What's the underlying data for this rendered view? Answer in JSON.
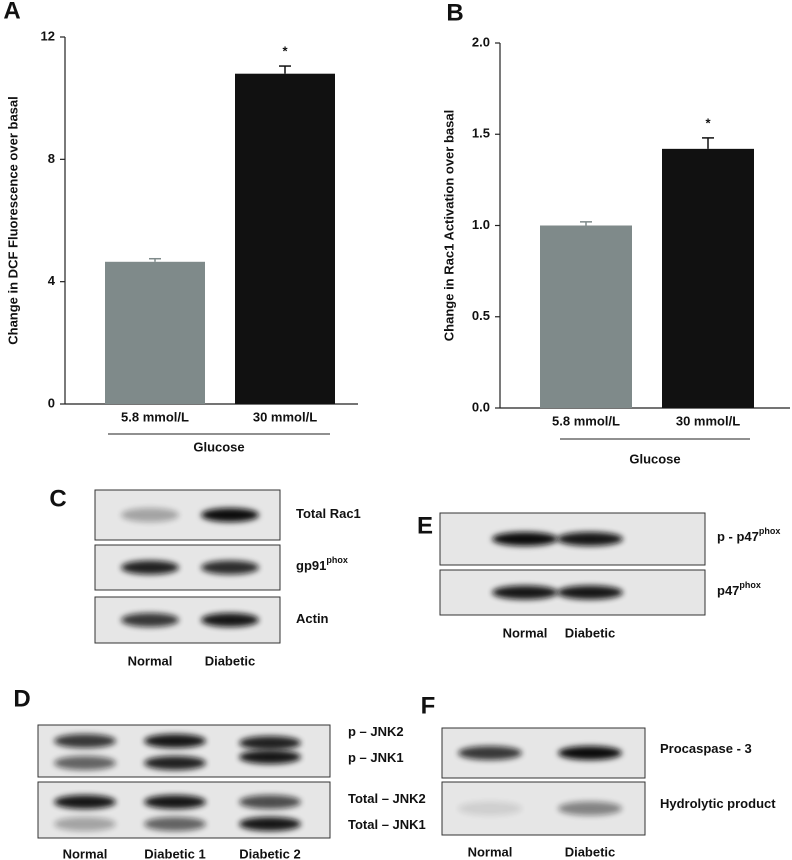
{
  "chart_data": [
    {
      "type": "bar",
      "panel": "A",
      "ylabel": "Change in DCF Fluorescence over basal",
      "xlabel": "Glucose",
      "categories": [
        "5.8 mmol/L",
        "30 mmol/L"
      ],
      "values": [
        4.65,
        10.8
      ],
      "errors": [
        0.1,
        0.25
      ],
      "colors": [
        "#7f8a8a",
        "#111111"
      ],
      "annotation": "*",
      "ylim": [
        0,
        12
      ],
      "yticks": [
        0,
        4,
        8,
        12
      ]
    },
    {
      "type": "bar",
      "panel": "B",
      "ylabel": "Change in Rac1 Activation over basal",
      "xlabel": "Glucose",
      "categories": [
        "5.8 mmol/L",
        "30 mmol/L"
      ],
      "values": [
        1.0,
        1.42
      ],
      "errors": [
        0.02,
        0.06
      ],
      "colors": [
        "#7f8a8a",
        "#111111"
      ],
      "annotation": "*",
      "ylim": [
        0,
        2
      ],
      "yticks": [
        {
          "value": 0,
          "label": "0.0"
        },
        0.5,
        {
          "value": 1,
          "label": "1.0"
        },
        1.5,
        {
          "value": 2,
          "label": "2.0"
        }
      ]
    }
  ],
  "blots": [
    {
      "panel": "C",
      "lanes": [
        "Normal",
        "Diabetic"
      ],
      "rows": [
        [
          {
            "label": "Total Rac1"
          }
        ],
        [
          {
            "label": "gp91",
            "sup": "phox"
          }
        ],
        [
          {
            "label": "Actin"
          }
        ]
      ]
    },
    {
      "panel": "E",
      "lanes": [
        "Normal",
        "Diabetic"
      ],
      "rows": [
        [
          {
            "label": "p - p47",
            "sup": "phox"
          }
        ],
        [
          {
            "label": "p47",
            "sup": "phox"
          }
        ]
      ]
    },
    {
      "panel": "D",
      "lanes": [
        "Normal",
        "Diabetic 1",
        "Diabetic 2"
      ],
      "rows": [
        [
          {
            "label": "p – JNK2"
          },
          {
            "label": "p – JNK1"
          }
        ],
        [
          {
            "label": "Total – JNK2"
          },
          {
            "label": "Total – JNK1"
          }
        ]
      ]
    },
    {
      "panel": "F",
      "lanes": [
        "Normal",
        "Diabetic"
      ],
      "rows": [
        [
          {
            "label": "Procaspase - 3"
          }
        ],
        [
          {
            "label": "Hydrolytic product"
          }
        ]
      ]
    }
  ]
}
